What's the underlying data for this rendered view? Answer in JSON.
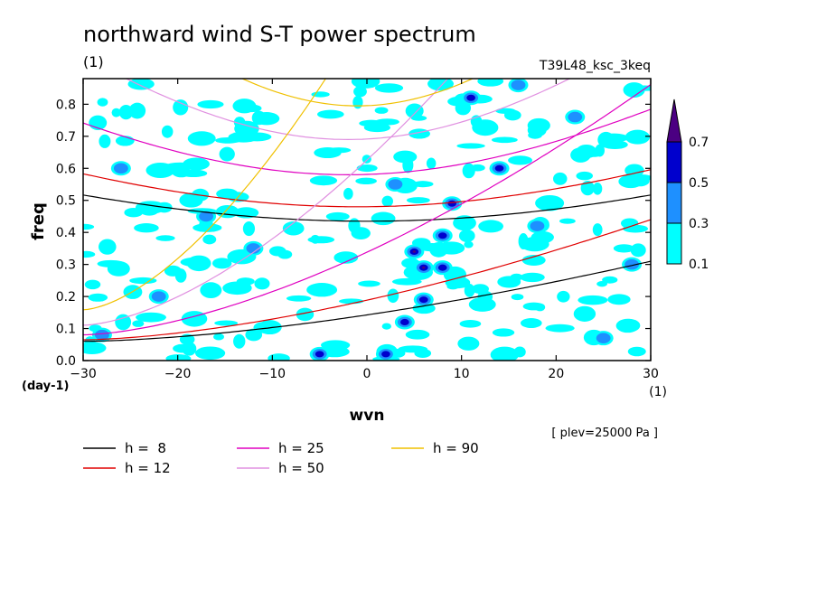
{
  "chart_data": {
    "type": "heatmap",
    "title": "northward wind S-T power spectrum",
    "subtitle_left": "(1)",
    "subtitle_right": "T39L48_ksc_3keq",
    "xlabel": "wvn",
    "ylabel": "freq",
    "x_unit_label": "(1)",
    "y_unit_label": "(day-1)",
    "xlim": [
      -30,
      30
    ],
    "ylim": [
      0,
      0.88
    ],
    "x_ticks": [
      -30,
      -20,
      -10,
      0,
      10,
      20,
      30
    ],
    "y_ticks": [
      0.0,
      0.1,
      0.2,
      0.3,
      0.4,
      0.5,
      0.6,
      0.7,
      0.8
    ],
    "note": "[ plev=25000 Pa ]",
    "colorbar": {
      "levels": [
        0.1,
        0.3,
        0.5,
        0.7
      ],
      "colors": [
        "#00ffff",
        "#1e90ff",
        "#0000cd",
        "#4b0082"
      ]
    },
    "shaded_blobs": [
      {
        "x": 5,
        "y": 0.34,
        "level": 3
      },
      {
        "x": 6,
        "y": 0.29,
        "level": 3
      },
      {
        "x": 8,
        "y": 0.29,
        "level": 2
      },
      {
        "x": 9,
        "y": 0.49,
        "level": 2
      },
      {
        "x": 14,
        "y": 0.6,
        "level": 2
      },
      {
        "x": 4,
        "y": 0.12,
        "level": 2
      },
      {
        "x": -5,
        "y": 0.02,
        "level": 2
      },
      {
        "x": 2,
        "y": 0.02,
        "level": 2
      },
      {
        "x": 6,
        "y": 0.19,
        "level": 2
      },
      {
        "x": 11,
        "y": 0.82,
        "level": 2
      },
      {
        "x": -17,
        "y": 0.45,
        "level": 1
      },
      {
        "x": 25,
        "y": 0.07,
        "level": 1
      },
      {
        "x": -28,
        "y": 0.08,
        "level": 1
      },
      {
        "x": 18,
        "y": 0.42,
        "level": 1
      },
      {
        "x": -12,
        "y": 0.35,
        "level": 1
      },
      {
        "x": 3,
        "y": 0.55,
        "level": 1
      },
      {
        "x": 22,
        "y": 0.76,
        "level": 1
      },
      {
        "x": -26,
        "y": 0.6,
        "level": 1
      },
      {
        "x": 8,
        "y": 0.39,
        "level": 2
      },
      {
        "x": 16,
        "y": 0.86,
        "level": 1
      },
      {
        "x": 28,
        "y": 0.3,
        "level": 1
      },
      {
        "x": -22,
        "y": 0.2,
        "level": 1
      }
    ],
    "dispersion_curves": [
      {
        "label": "h =  8",
        "h": 8,
        "color": "#000000"
      },
      {
        "label": "h = 12",
        "h": 12,
        "color": "#e00000"
      },
      {
        "label": "h = 25",
        "h": 25,
        "color": "#e000c0"
      },
      {
        "label": "h = 50",
        "h": 50,
        "color": "#e090e0"
      },
      {
        "label": "h = 90",
        "h": 90,
        "color": "#f0c000"
      }
    ]
  }
}
